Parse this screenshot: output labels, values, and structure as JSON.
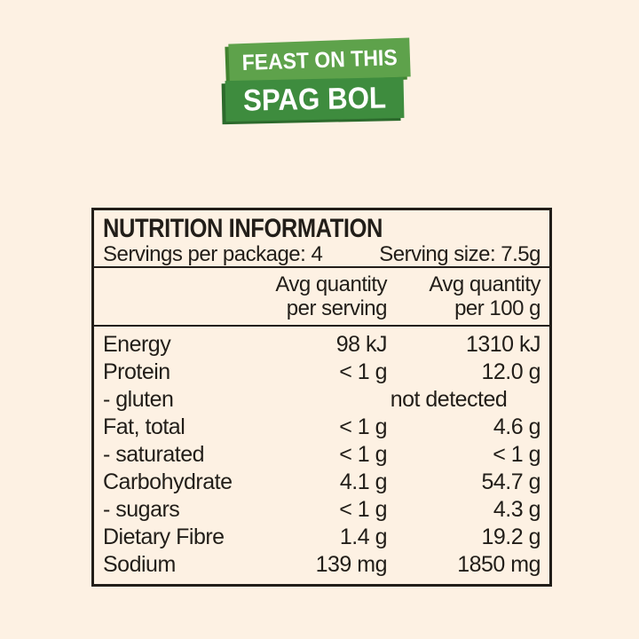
{
  "colors": {
    "background": "#fdf1e3",
    "ink": "#221e19",
    "badge_top_bg": "#5ea24b",
    "badge_top_shadow": "#41822f",
    "badge_bottom_bg": "#3e8c3e",
    "badge_bottom_shadow": "#2c6a2c",
    "badge_text": "#ffffff"
  },
  "badges": {
    "top_label": "FEAST ON THIS",
    "bottom_label": "SPAG BOL"
  },
  "nutrition_table": {
    "title": "NUTRITION INFORMATION",
    "servings_per_package": "Servings per package: 4",
    "serving_size": "Serving size: 7.5g",
    "columns": {
      "per_serving": [
        "Avg quantity",
        "per serving"
      ],
      "per_100g": [
        "Avg quantity",
        "per 100 g"
      ]
    },
    "rows": [
      {
        "label": "Energy",
        "per_serving": "98 kJ",
        "per_100g": "1310 kJ"
      },
      {
        "label": "Protein",
        "per_serving": "< 1 g",
        "per_100g": "12.0 g"
      },
      {
        "label": "- gluten",
        "span_value": "not detected"
      },
      {
        "label": "Fat, total",
        "per_serving": "< 1 g",
        "per_100g": "4.6 g"
      },
      {
        "label": "- saturated",
        "per_serving": "< 1 g",
        "per_100g": "< 1 g"
      },
      {
        "label": "Carbohydrate",
        "per_serving": "4.1 g",
        "per_100g": "54.7 g"
      },
      {
        "label": "- sugars",
        "per_serving": "< 1 g",
        "per_100g": "4.3 g"
      },
      {
        "label": "Dietary Fibre",
        "per_serving": "1.4 g",
        "per_100g": "19.2 g"
      },
      {
        "label": "Sodium",
        "per_serving": "139 mg",
        "per_100g": "1850 mg"
      }
    ]
  }
}
